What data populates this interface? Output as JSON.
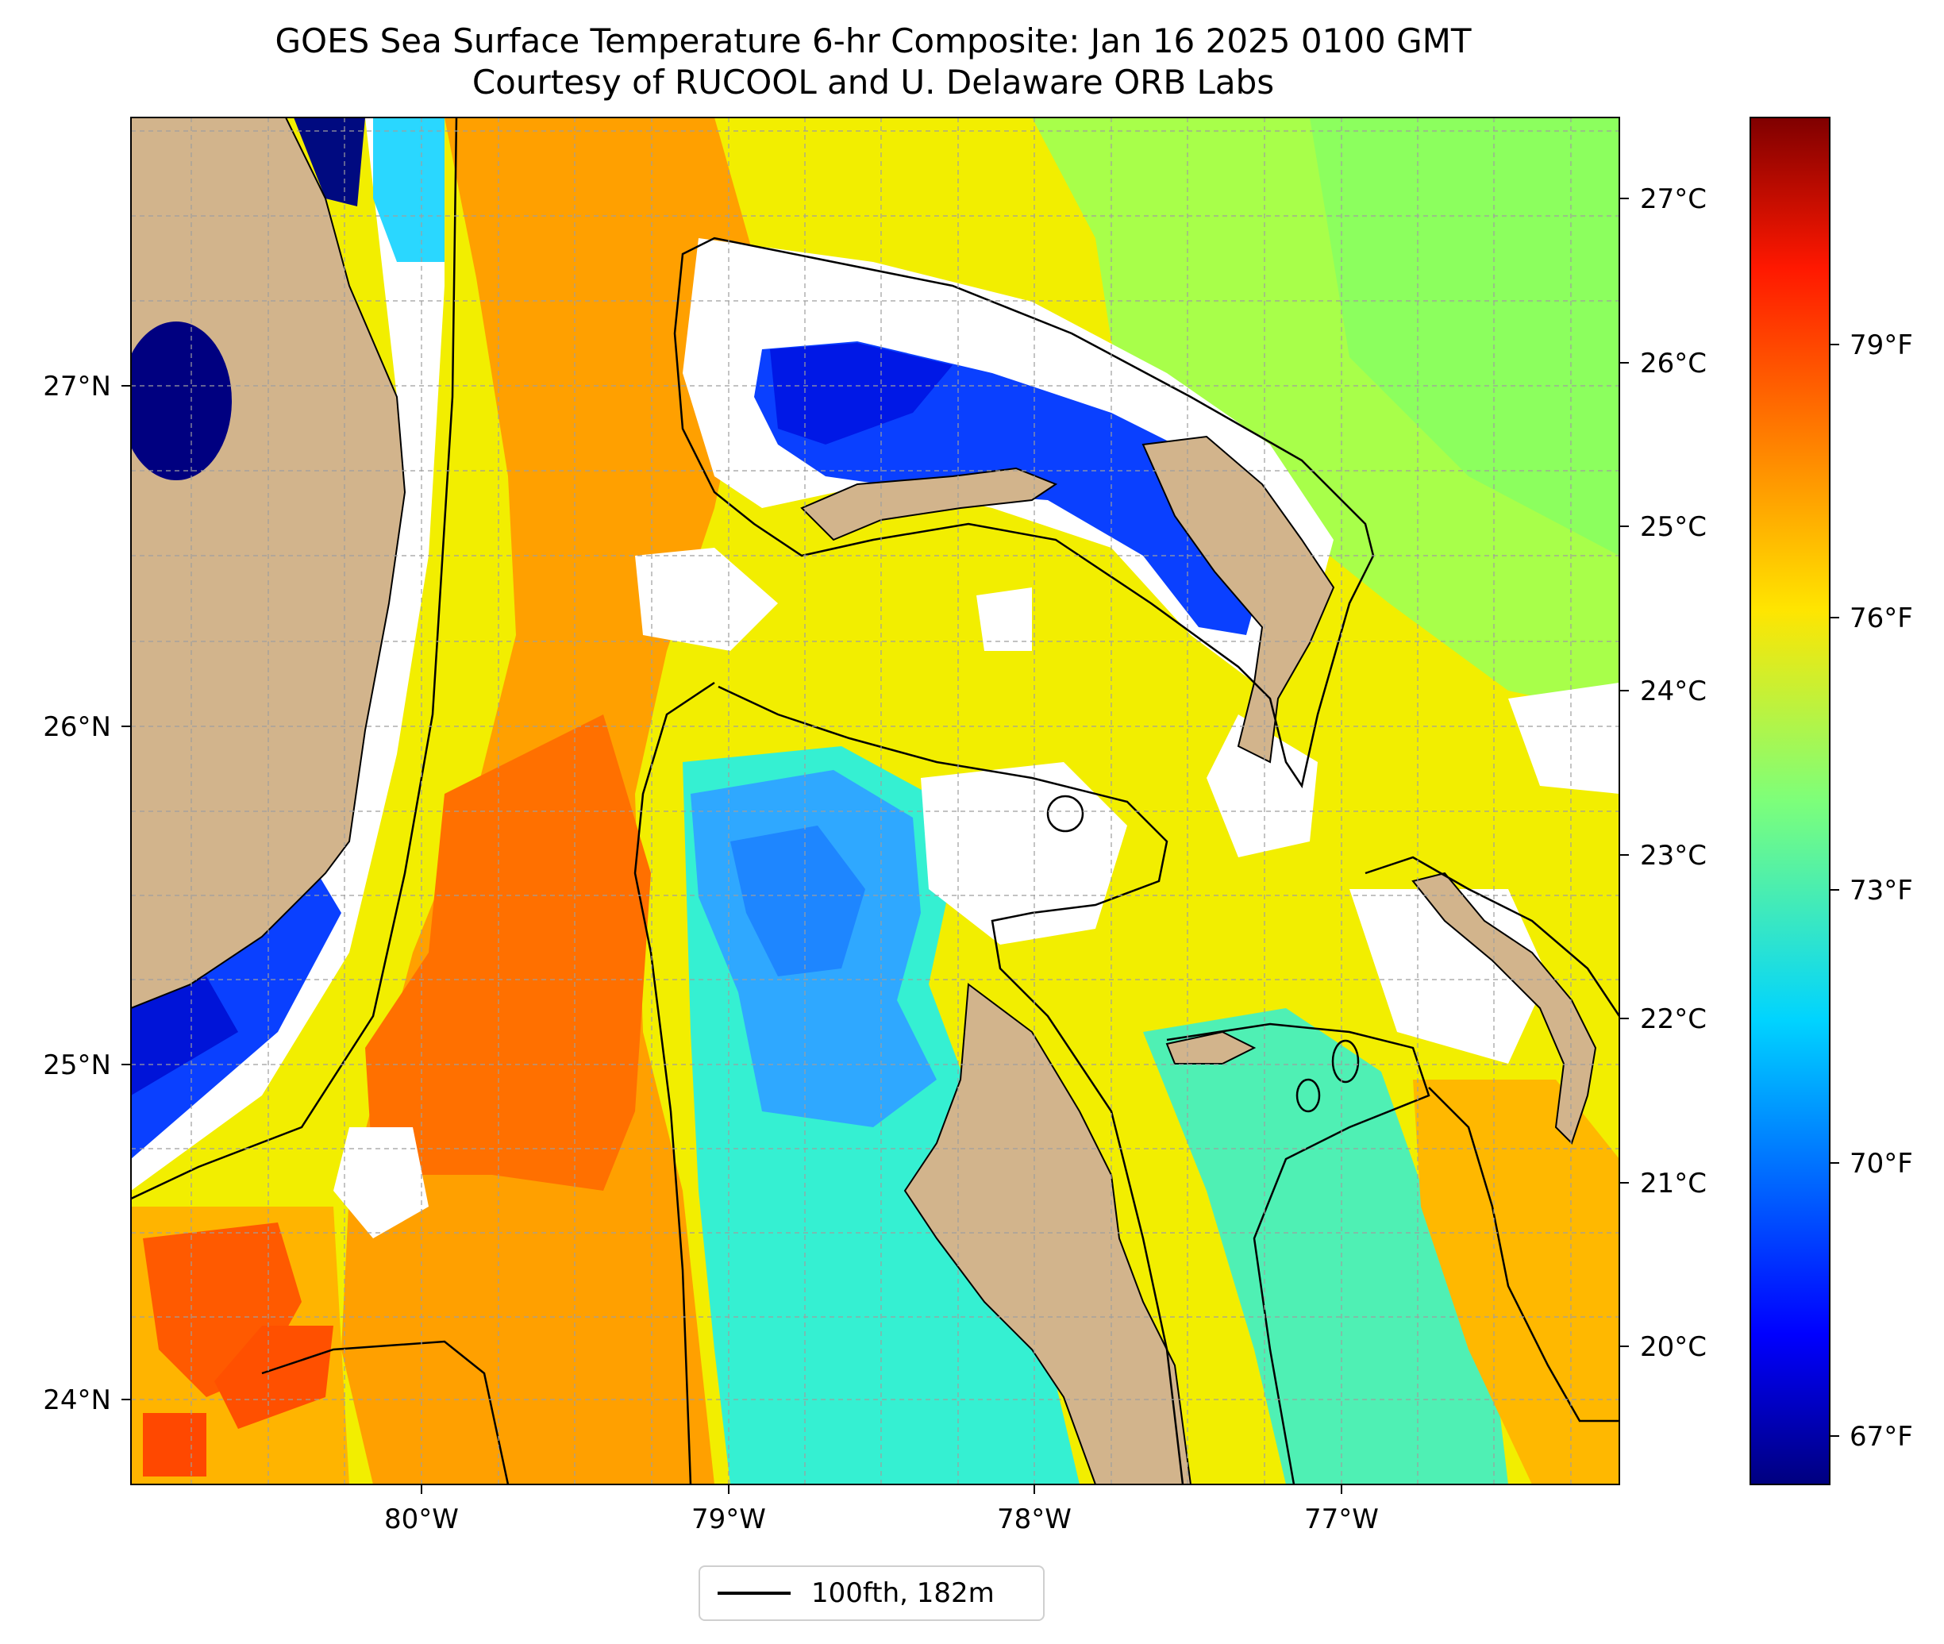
{
  "title": "GOES Sea Surface Temperature 6-hr Composite: Jan 16 2025 0100 GMT",
  "subtitle": "Courtesy of RUCOOL and U. Delaware ORB Labs",
  "axes": {
    "lat_ticks": [
      "27°N",
      "26°N",
      "25°N",
      "24°N"
    ],
    "lon_ticks": [
      "80°W",
      "79°W",
      "78°W",
      "77°W"
    ],
    "lat_range": [
      23.75,
      27.82
    ],
    "lon_range": [
      -80.95,
      -76.15
    ],
    "grid": true
  },
  "colorbar": {
    "celsius_ticks": [
      "27°C",
      "26°C",
      "25°C",
      "24°C",
      "23°C",
      "22°C",
      "21°C",
      "20°C"
    ],
    "fahrenheit_ticks": [
      "79°F",
      "76°F",
      "73°F",
      "70°F",
      "67°F"
    ],
    "colormap": "jet",
    "range_c": [
      19.25,
      27.6
    ]
  },
  "legend": {
    "label": "100fth, 182m"
  },
  "colors": {
    "land": "#d2b48c",
    "warm": "#ff6a00",
    "orange": "#ffa500",
    "yellow": "#f5ee00",
    "green": "#9cff5a",
    "cyan": "#3cf0d0",
    "blue": "#1e7fff",
    "deep_blue": "#0000cc",
    "navy": "#000080",
    "no_data": "#ffffff"
  }
}
